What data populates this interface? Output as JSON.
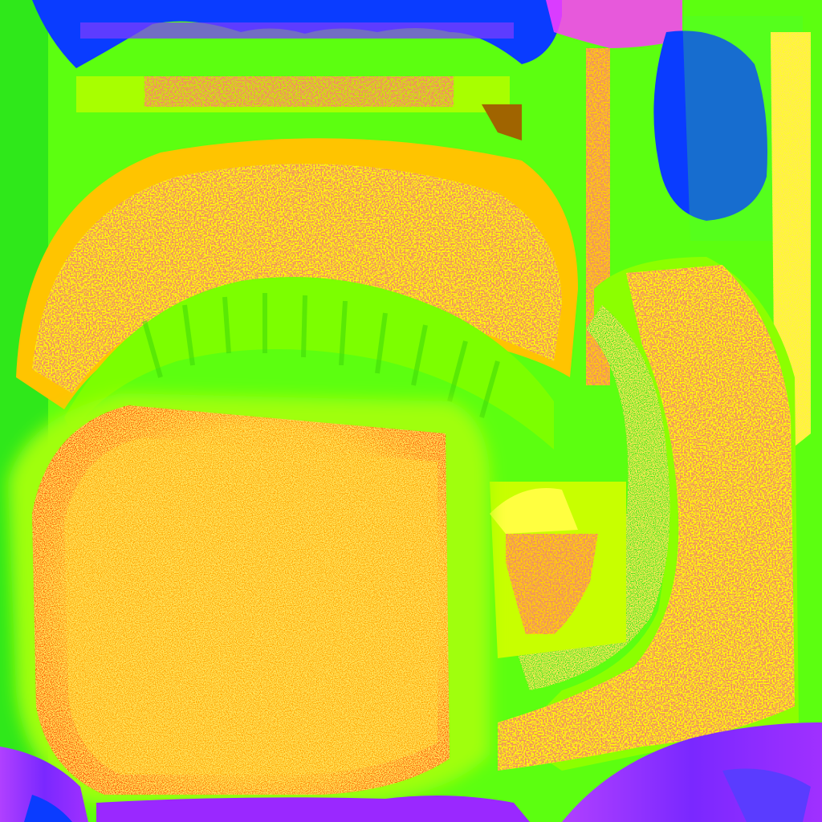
{
  "image": {
    "kind": "texture-atlas",
    "description_visible_text": "",
    "palette": {
      "background_green": "#39ff0c",
      "lime": "#8cff00",
      "yellow": "#ffff00",
      "gold": "#ffc400",
      "orange": "#ffa600",
      "deep_orange": "#ff5a00",
      "red_speckle": "#e04a1a",
      "blue": "#0a3cff",
      "violet": "#9a28ff",
      "magenta": "#ff3cff",
      "brown": "#a06400",
      "cyan_green": "#00d85a"
    }
  }
}
